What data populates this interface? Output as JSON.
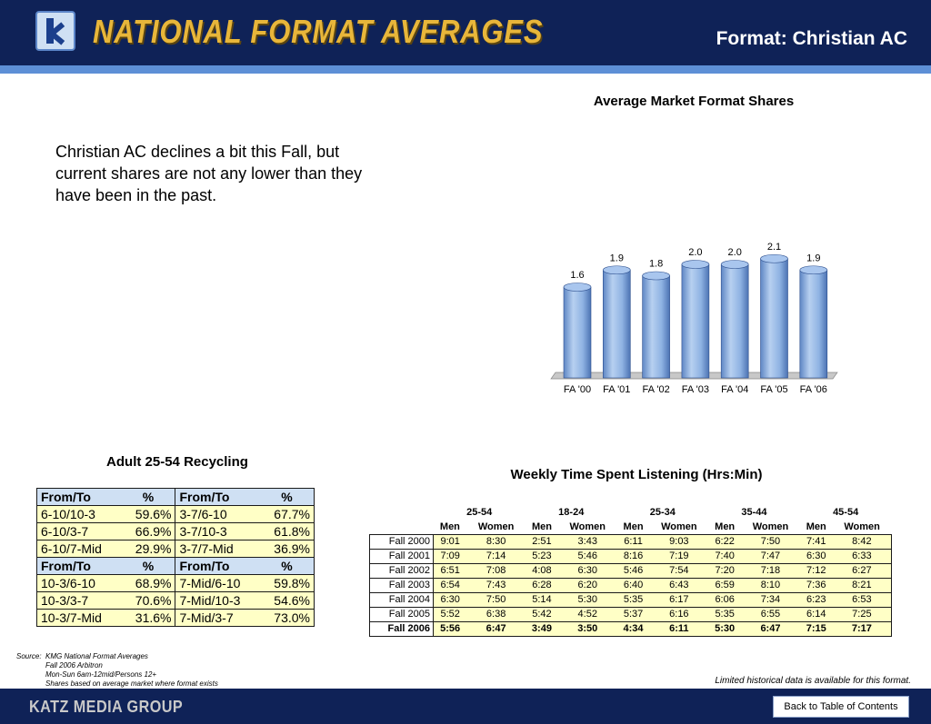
{
  "header": {
    "app_title": "NATIONAL FORMAT AVERAGES",
    "format_title": "Format: Christian AC"
  },
  "commentary": "Christian AC declines a bit this Fall, but current shares are not any lower than they have been in the past.",
  "chart_data": {
    "type": "bar",
    "title": "Average Market Format Shares",
    "categories": [
      "FA '00",
      "FA '01",
      "FA '02",
      "FA '03",
      "FA '04",
      "FA '05",
      "FA '06"
    ],
    "values": [
      1.6,
      1.9,
      1.8,
      2.0,
      2.0,
      2.1,
      1.9
    ],
    "data_labels": [
      "1.6",
      "1.9",
      "1.8",
      "2.0",
      "2.0",
      "2.1",
      "1.9"
    ],
    "style": "3d-cylinder",
    "grid": false,
    "bar_color": "#8fb3e3"
  },
  "recycling": {
    "title": "Adult 25-54 Recycling",
    "header": [
      "From/To",
      "%",
      "From/To",
      "%"
    ],
    "rows1": [
      [
        "6-10/10-3",
        "59.6%",
        "3-7/6-10",
        "67.7%"
      ],
      [
        "6-10/3-7",
        "66.9%",
        "3-7/10-3",
        "61.8%"
      ],
      [
        "6-10/7-Mid",
        "29.9%",
        "3-7/7-Mid",
        "36.9%"
      ]
    ],
    "rows2": [
      [
        "10-3/6-10",
        "68.9%",
        "7-Mid/6-10",
        "59.8%"
      ],
      [
        "10-3/3-7",
        "70.6%",
        "7-Mid/10-3",
        "54.6%"
      ],
      [
        "10-3/7-Mid",
        "31.6%",
        "7-Mid/3-7",
        "73.0%"
      ]
    ]
  },
  "tsl": {
    "title": "Weekly Time Spent Listening (Hrs:Min)",
    "groups": [
      "25-54",
      "18-24",
      "25-34",
      "35-44",
      "45-54"
    ],
    "sub": [
      "Men",
      "Women"
    ],
    "rows": [
      {
        "label": "Fall 2000",
        "values": [
          "9:01",
          "8:30",
          "2:51",
          "3:43",
          "6:11",
          "9:03",
          "6:22",
          "7:50",
          "7:41",
          "8:42"
        ]
      },
      {
        "label": "Fall 2001",
        "values": [
          "7:09",
          "7:14",
          "5:23",
          "5:46",
          "8:16",
          "7:19",
          "7:40",
          "7:47",
          "6:30",
          "6:33"
        ]
      },
      {
        "label": "Fall 2002",
        "values": [
          "6:51",
          "7:08",
          "4:08",
          "6:30",
          "5:46",
          "7:54",
          "7:20",
          "7:18",
          "7:12",
          "6:27"
        ]
      },
      {
        "label": "Fall 2003",
        "values": [
          "6:54",
          "7:43",
          "6:28",
          "6:20",
          "6:40",
          "6:43",
          "6:59",
          "8:10",
          "7:36",
          "8:21"
        ]
      },
      {
        "label": "Fall 2004",
        "values": [
          "6:30",
          "7:50",
          "5:14",
          "5:30",
          "5:35",
          "6:17",
          "6:06",
          "7:34",
          "6:23",
          "6:53"
        ]
      },
      {
        "label": "Fall 2005",
        "values": [
          "5:52",
          "6:38",
          "5:42",
          "4:52",
          "5:37",
          "6:16",
          "5:35",
          "6:55",
          "6:14",
          "7:25"
        ]
      },
      {
        "label": "Fall 2006",
        "values": [
          "5:56",
          "6:47",
          "3:49",
          "3:50",
          "4:34",
          "6:11",
          "5:30",
          "6:47",
          "7:15",
          "7:17"
        ],
        "bold": true
      }
    ]
  },
  "source": {
    "label": "Source:",
    "lines": [
      "KMG National Format Averages",
      "Fall 2006 Arbitron",
      "Mon-Sun 6am-12mid/Persons 12+",
      "Shares based on average market where format exists"
    ]
  },
  "note": "Limited historical data is available for this format.",
  "footer": {
    "brand": "KATZ MEDIA GROUP",
    "back_label": "Back to Table of Contents"
  }
}
